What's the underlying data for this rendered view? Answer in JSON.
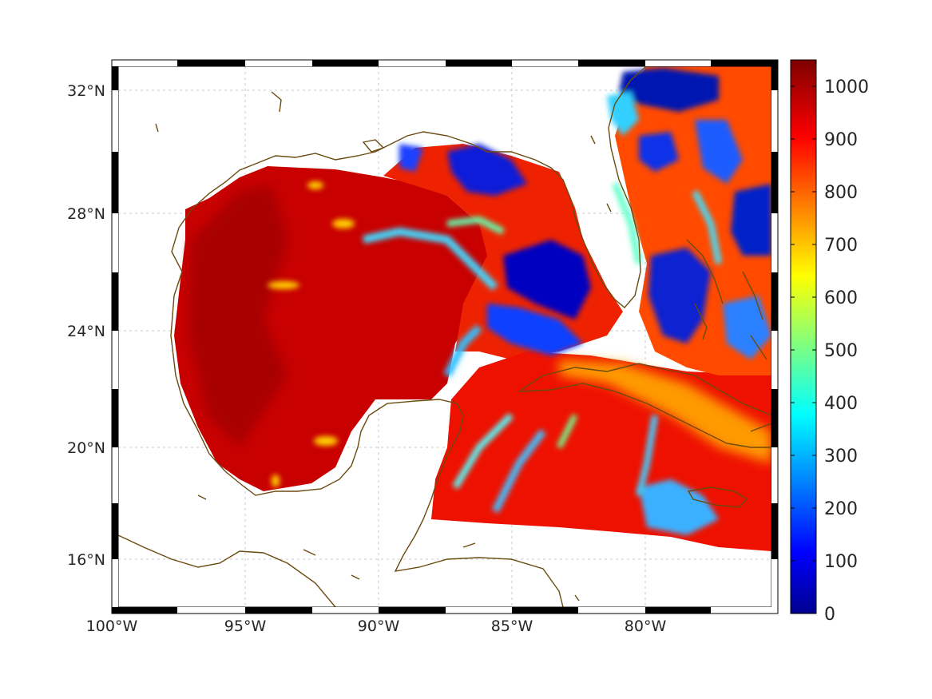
{
  "map": {
    "lon_ticks": [
      "100°W",
      "95°W",
      "90°W",
      "85°W",
      "80°W"
    ],
    "lat_ticks": [
      "16°N",
      "20°N",
      "24°N",
      "28°N",
      "32°N"
    ],
    "grid": true,
    "coastline_color": "#6b4a10",
    "frame_style": "black-white-dashed"
  },
  "colorbar": {
    "colormap": "jet",
    "range": [
      0,
      1050
    ],
    "tick_labels": [
      "0",
      "100",
      "200",
      "300",
      "400",
      "500",
      "600",
      "700",
      "800",
      "900",
      "1000"
    ],
    "tick_values": [
      0,
      100,
      200,
      300,
      400,
      500,
      600,
      700,
      800,
      900,
      1000
    ]
  }
}
